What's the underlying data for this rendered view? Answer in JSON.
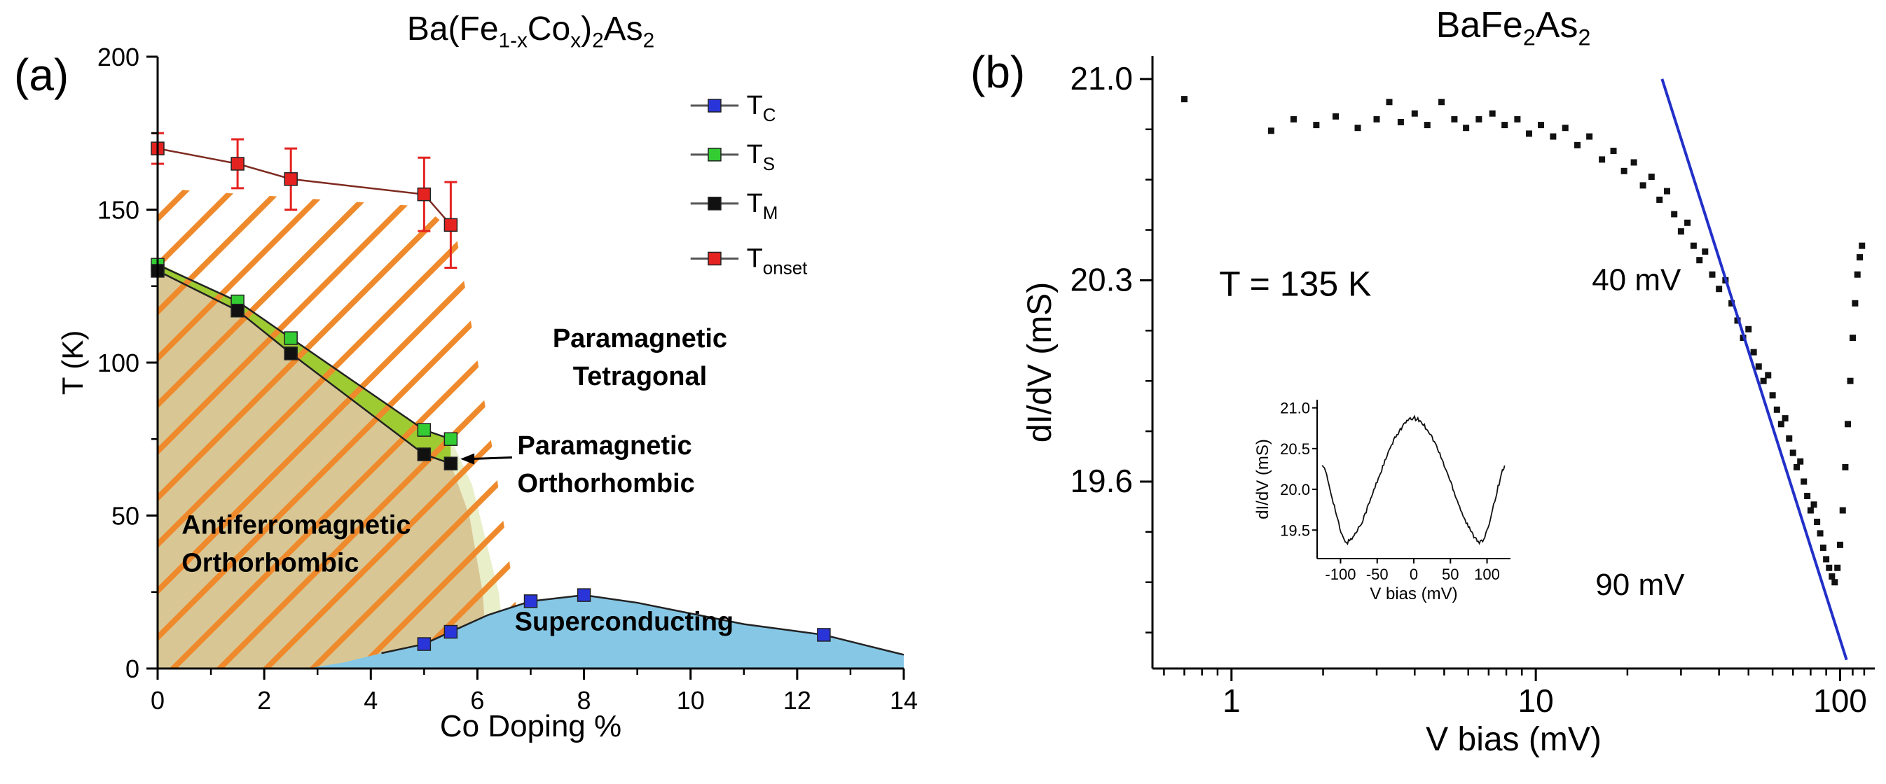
{
  "figure": {
    "background": "#ffffff"
  },
  "panels": {
    "a": {
      "label": "(a)",
      "title_segments": [
        {
          "t": "Ba(Fe"
        },
        {
          "t": "1-x",
          "s": 1
        },
        {
          "t": "Co"
        },
        {
          "t": "x",
          "s": 1
        },
        {
          "t": ")"
        },
        {
          "t": "2",
          "s": 1
        },
        {
          "t": "As"
        },
        {
          "t": "2",
          "s": 1
        }
      ]
    },
    "b": {
      "label": "(b)",
      "title_segments": [
        {
          "t": "BaFe"
        },
        {
          "t": "2",
          "s": 1
        },
        {
          "t": "As"
        },
        {
          "t": "2",
          "s": 1
        }
      ]
    }
  },
  "chart_data": [
    {
      "panel": "a",
      "type": "scatter",
      "title": "Ba(Fe1-xCox)2As2",
      "xlabel": "Co Doping %",
      "ylabel": "T (K)",
      "xlim": [
        0,
        14
      ],
      "ylim": [
        0,
        200
      ],
      "xticks": [
        0,
        2,
        4,
        6,
        8,
        10,
        12,
        14
      ],
      "xticks_minor": [
        1,
        3,
        5,
        7,
        9,
        11,
        13
      ],
      "yticks": [
        0,
        50,
        100,
        150,
        200
      ],
      "yticks_minor": [
        25,
        75,
        125,
        175
      ],
      "grid": false,
      "legend_position": "top-right-inside",
      "series": [
        {
          "name": "T_C",
          "label_main": "T",
          "label_sub": "C",
          "color": "#2a35d9",
          "line_color": "#222222",
          "x": [
            5,
            5.5,
            7,
            8,
            12.5
          ],
          "y": [
            8,
            12,
            22,
            24,
            11
          ]
        },
        {
          "name": "T_S",
          "label_main": "T",
          "label_sub": "S",
          "color": "#33cc33",
          "line_color": "#222222",
          "x": [
            0,
            1.5,
            2.5,
            5,
            5.5
          ],
          "y": [
            132,
            120,
            108,
            78,
            75
          ]
        },
        {
          "name": "T_M",
          "label_main": "T",
          "label_sub": "M",
          "color": "#111111",
          "line_color": "#222222",
          "x": [
            0,
            1.5,
            2.5,
            5,
            5.5
          ],
          "y": [
            130,
            117,
            103,
            70,
            67
          ]
        },
        {
          "name": "T_onset",
          "label_main": "T",
          "label_sub": "onset",
          "color": "#e42320",
          "line_color": "#7e2a20",
          "x": [
            0,
            1.5,
            2.5,
            5,
            5.5
          ],
          "y": [
            170,
            165,
            160,
            155,
            145
          ],
          "yerr": [
            5,
            8,
            10,
            12,
            14
          ]
        }
      ],
      "regions": [
        {
          "name": "antiferromagnetic-orthorhombic-region",
          "fill": "#d8c795",
          "points": [
            [
              0,
              130
            ],
            [
              1.5,
              117
            ],
            [
              2.5,
              103
            ],
            [
              5,
              70
            ],
            [
              5.5,
              67
            ],
            [
              5.85,
              50
            ],
            [
              6.1,
              25
            ],
            [
              6.2,
              0
            ],
            [
              0,
              0
            ]
          ]
        },
        {
          "name": "structural-transition-band",
          "fill": "#9ecb32",
          "points": [
            [
              0,
              132.5
            ],
            [
              1.5,
              120
            ],
            [
              2.5,
              108
            ],
            [
              5,
              78
            ],
            [
              5.5,
              75
            ],
            [
              5.5,
              67
            ],
            [
              5,
              70
            ],
            [
              2.5,
              103
            ],
            [
              1.5,
              117
            ],
            [
              0,
              130
            ]
          ]
        },
        {
          "name": "paramagnetic-orthorhombic-wedge",
          "fill": "#e9efc9",
          "points": [
            [
              5.5,
              75
            ],
            [
              5.9,
              60
            ],
            [
              6.4,
              25
            ],
            [
              6.55,
              0
            ],
            [
              6.2,
              0
            ],
            [
              6.1,
              25
            ],
            [
              5.85,
              50
            ],
            [
              5.5,
              67
            ]
          ]
        },
        {
          "name": "superconducting-dome",
          "fill": "#85c7e5",
          "points": [
            [
              2.8,
              0
            ],
            [
              3.5,
              2
            ],
            [
              4.2,
              5
            ],
            [
              5,
              8
            ],
            [
              5.5,
              12
            ],
            [
              6.2,
              17.5
            ],
            [
              7,
              22
            ],
            [
              8,
              24
            ],
            [
              9,
              21.5
            ],
            [
              10,
              18
            ],
            [
              11,
              14.5
            ],
            [
              12.5,
              11
            ],
            [
              13.3,
              7.5
            ],
            [
              14,
              4.5
            ],
            [
              14,
              0
            ]
          ]
        }
      ],
      "dome_line": [
        [
          4.2,
          5
        ],
        [
          5,
          8
        ],
        [
          5.5,
          12
        ],
        [
          6.2,
          17.5
        ],
        [
          7,
          22
        ],
        [
          8,
          24
        ],
        [
          9,
          21.5
        ],
        [
          10,
          18
        ],
        [
          11,
          14.5
        ],
        [
          12.5,
          11
        ],
        [
          13.3,
          7.5
        ],
        [
          14,
          4.5
        ]
      ],
      "hatch": {
        "color": "#ef8a2c",
        "spacing": 47,
        "width": 8,
        "points": [
          [
            0,
            157
          ],
          [
            5,
            151
          ],
          [
            5.6,
            142
          ],
          [
            6.3,
            70
          ],
          [
            6.9,
            0
          ],
          [
            0,
            0
          ]
        ]
      },
      "legend": {
        "x_line_start": 10.0,
        "x_line_end": 10.9,
        "x_label": 11.05,
        "item_y": [
          184,
          168,
          152,
          134
        ]
      },
      "annotations": [
        {
          "name": "paramagnetic-tetragonal-label",
          "lines": [
            "Paramagnetic",
            "Tetragonal"
          ],
          "x": 9.05,
          "y": 105,
          "anchor": "middle",
          "bold": true,
          "size": 38,
          "line_gap": 54
        },
        {
          "name": "paramagnetic-orthorhombic-label",
          "lines": [
            "Paramagnetic",
            "Orthorhombic"
          ],
          "x": 6.75,
          "y": 70,
          "anchor": "start",
          "bold": true,
          "size": 38,
          "line_gap": 54
        },
        {
          "name": "antiferromagnetic-orthorhombic-label",
          "lines": [
            "Antiferromagnetic",
            "Orthorhombic"
          ],
          "x": 0.45,
          "y": 44,
          "anchor": "start",
          "bold": true,
          "size": 38,
          "line_gap": 54
        },
        {
          "name": "superconducting-label",
          "lines": [
            "Superconducting"
          ],
          "x": 6.7,
          "y": 12.5,
          "anchor": "start",
          "bold": true,
          "size": 38,
          "line_gap": 54
        }
      ],
      "arrow": {
        "x1": 6.65,
        "y1": 69,
        "x2": 5.68,
        "y2": 68.5
      }
    },
    {
      "panel": "b",
      "type": "scatter",
      "title": "BaFe2As2",
      "xlabel": "V bias (mV)",
      "ylabel": "dI/dV (mS)",
      "xscale": "log",
      "xlim": [
        0.55,
        130
      ],
      "ylim": [
        18.95,
        21.08
      ],
      "xticks": [
        1,
        10,
        100
      ],
      "xticks_minor": [
        0.6,
        0.7,
        0.8,
        0.9,
        2,
        3,
        4,
        5,
        6,
        7,
        8,
        9,
        20,
        30,
        40,
        50,
        60,
        70,
        80,
        90,
        110,
        120
      ],
      "yticks": [
        19.6,
        20.3,
        21.0
      ],
      "ytick_minor_step": 0.175,
      "series": [
        {
          "name": "conductance",
          "color": "#111111",
          "marker": "square",
          "points": [
            [
              0.7,
              20.93
            ],
            [
              1.35,
              20.82
            ],
            [
              1.6,
              20.86
            ],
            [
              1.9,
              20.84
            ],
            [
              2.2,
              20.87
            ],
            [
              2.6,
              20.83
            ],
            [
              3.0,
              20.86
            ],
            [
              3.3,
              20.92
            ],
            [
              3.6,
              20.85
            ],
            [
              4.0,
              20.88
            ],
            [
              4.4,
              20.84
            ],
            [
              4.9,
              20.92
            ],
            [
              5.4,
              20.86
            ],
            [
              5.9,
              20.83
            ],
            [
              6.5,
              20.86
            ],
            [
              7.2,
              20.88
            ],
            [
              7.9,
              20.84
            ],
            [
              8.7,
              20.86
            ],
            [
              9.5,
              20.81
            ],
            [
              10.4,
              20.84
            ],
            [
              11.4,
              20.8
            ],
            [
              12.5,
              20.83
            ],
            [
              13.7,
              20.77
            ],
            [
              15,
              20.8
            ],
            [
              16.5,
              20.72
            ],
            [
              18,
              20.75
            ],
            [
              19.5,
              20.68
            ],
            [
              21,
              20.71
            ],
            [
              22.5,
              20.63
            ],
            [
              24,
              20.66
            ],
            [
              25.5,
              20.58
            ],
            [
              27,
              20.61
            ],
            [
              28.5,
              20.53
            ],
            [
              30,
              20.47
            ],
            [
              31.5,
              20.5
            ],
            [
              33,
              20.42
            ],
            [
              34.5,
              20.37
            ],
            [
              36,
              20.4
            ],
            [
              38,
              20.32
            ],
            [
              40,
              20.27
            ],
            [
              42,
              20.3
            ],
            [
              44,
              20.22
            ],
            [
              46,
              20.16
            ],
            [
              48,
              20.1
            ],
            [
              50,
              20.13
            ],
            [
              52,
              20.05
            ],
            [
              54,
              20.0
            ],
            [
              56,
              19.95
            ],
            [
              58,
              19.97
            ],
            [
              60,
              19.9
            ],
            [
              62,
              19.85
            ],
            [
              64,
              19.8
            ],
            [
              66,
              19.82
            ],
            [
              68,
              19.75
            ],
            [
              70,
              19.7
            ],
            [
              72,
              19.65
            ],
            [
              74,
              19.67
            ],
            [
              76,
              19.6
            ],
            [
              78,
              19.55
            ],
            [
              80,
              19.5
            ],
            [
              82,
              19.52
            ],
            [
              84,
              19.46
            ],
            [
              86,
              19.42
            ],
            [
              88,
              19.37
            ],
            [
              90,
              19.33
            ],
            [
              92,
              19.3
            ],
            [
              94,
              19.27
            ],
            [
              96,
              19.25
            ],
            [
              98,
              19.3
            ],
            [
              100,
              19.38
            ],
            [
              102,
              19.5
            ],
            [
              104,
              19.65
            ],
            [
              106,
              19.8
            ],
            [
              108,
              19.95
            ],
            [
              110,
              20.1
            ],
            [
              112,
              20.22
            ],
            [
              114,
              20.32
            ],
            [
              116,
              20.38
            ],
            [
              118,
              20.42
            ]
          ]
        }
      ],
      "fit_line": {
        "name": "log-fit-line",
        "color": "#2230c8",
        "x1": 26,
        "y1": 21.0,
        "x2": 105,
        "y2": 18.98
      },
      "annotations": [
        {
          "name": "temperature-label",
          "text": "T = 135 K",
          "x": 1.62,
          "y": 20.28,
          "anchor": "middle",
          "size": 50
        },
        {
          "name": "forty-mv-label",
          "text": "40 mV",
          "x": 30,
          "y": 20.3,
          "anchor": "end",
          "size": 44
        },
        {
          "name": "ninety-mv-label",
          "text": "90 mV",
          "x": 22,
          "y": 19.24,
          "anchor": "middle",
          "size": 44
        }
      ]
    },
    {
      "panel": "b-inset",
      "type": "line",
      "xlabel": "V bias (mV)",
      "ylabel": "dI/dV (mS)",
      "xlim": [
        -132,
        132
      ],
      "ylim": [
        19.15,
        21.1
      ],
      "xticks": [
        -100,
        -50,
        0,
        50,
        100
      ],
      "yticks": [
        19.5,
        20.0,
        20.5,
        21.0
      ],
      "line_color": "#111111",
      "x": [
        -125,
        -120,
        -110,
        -100,
        -95,
        -90,
        -80,
        -70,
        -60,
        -50,
        -40,
        -30,
        -20,
        -10,
        0,
        10,
        20,
        30,
        40,
        50,
        60,
        70,
        80,
        90,
        95,
        100,
        110,
        120,
        125
      ],
      "y": [
        20.32,
        20.2,
        19.85,
        19.48,
        19.37,
        19.35,
        19.45,
        19.62,
        19.85,
        20.1,
        20.33,
        20.55,
        20.72,
        20.83,
        20.88,
        20.83,
        20.72,
        20.55,
        20.33,
        20.1,
        19.85,
        19.62,
        19.45,
        19.35,
        19.37,
        19.48,
        19.85,
        20.2,
        20.32
      ]
    }
  ]
}
